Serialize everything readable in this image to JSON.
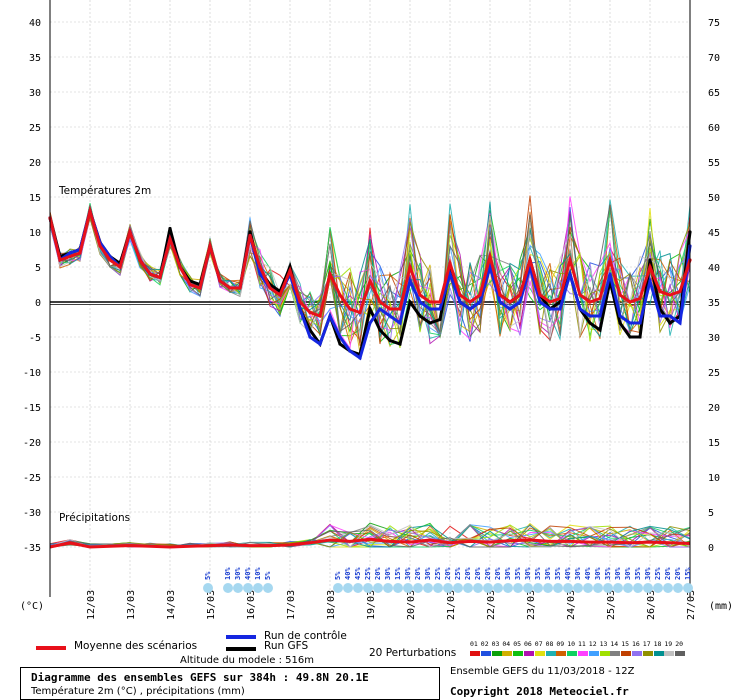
{
  "chart_data": {
    "type": "line",
    "title": "Diagramme des ensembles GEFS sur 384h : 49.8N 20.1E",
    "subtitle": "Température 2m (°C) , précipitations (mm)",
    "panels": {
      "temperature_label": "Températures 2m",
      "precip_label": "Précipitations"
    },
    "left_axis": {
      "unit": "(°C)",
      "ticks": [
        40,
        35,
        30,
        25,
        20,
        15,
        10,
        5,
        0,
        -5,
        -10,
        -15,
        -20,
        -25,
        -30,
        -35
      ],
      "range": [
        -35,
        40
      ]
    },
    "right_axis": {
      "unit": "(mm)",
      "ticks": [
        75,
        70,
        65,
        60,
        55,
        50,
        45,
        40,
        35,
        30,
        25,
        20,
        15,
        10,
        5,
        0
      ]
    },
    "dates": [
      "12/03",
      "13/03",
      "14/03",
      "15/03",
      "16/03",
      "17/03",
      "18/03",
      "19/03",
      "20/03",
      "21/03",
      "22/03",
      "23/03",
      "24/03",
      "25/03",
      "26/03",
      "27/03"
    ],
    "x_range_hours": [
      0,
      384
    ],
    "snow_labels": [
      {
        "h": 90,
        "t": "5%"
      },
      {
        "h": 102,
        "t": "10%"
      },
      {
        "h": 108,
        "t": "30%"
      },
      {
        "h": 114,
        "t": "40%"
      },
      {
        "h": 120,
        "t": "10%"
      },
      {
        "h": 126,
        "t": "5%"
      },
      {
        "h": 168,
        "t": "5%"
      },
      {
        "h": 174,
        "t": "40%"
      },
      {
        "h": 180,
        "t": "45%"
      },
      {
        "h": 186,
        "t": "25%"
      },
      {
        "h": 192,
        "t": "20%"
      },
      {
        "h": 198,
        "t": "30%"
      },
      {
        "h": 204,
        "t": "15%"
      },
      {
        "h": 210,
        "t": "30%"
      },
      {
        "h": 216,
        "t": "20%"
      },
      {
        "h": 222,
        "t": "30%"
      },
      {
        "h": 228,
        "t": "25%"
      },
      {
        "h": 234,
        "t": "20%"
      },
      {
        "h": 240,
        "t": "25%"
      },
      {
        "h": 246,
        "t": "20%"
      },
      {
        "h": 252,
        "t": "20%"
      },
      {
        "h": 258,
        "t": "20%"
      },
      {
        "h": 264,
        "t": "20%"
      },
      {
        "h": 270,
        "t": "30%"
      },
      {
        "h": 276,
        "t": "35%"
      },
      {
        "h": 282,
        "t": "30%"
      },
      {
        "h": 288,
        "t": "35%"
      },
      {
        "h": 294,
        "t": "30%"
      },
      {
        "h": 300,
        "t": "35%"
      },
      {
        "h": 306,
        "t": "40%"
      },
      {
        "h": 312,
        "t": "30%"
      },
      {
        "h": 318,
        "t": "40%"
      },
      {
        "h": 324,
        "t": "30%"
      },
      {
        "h": 330,
        "t": "35%"
      },
      {
        "h": 336,
        "t": "30%"
      },
      {
        "h": 342,
        "t": "30%"
      },
      {
        "h": 348,
        "t": "35%"
      },
      {
        "h": 354,
        "t": "30%"
      },
      {
        "h": 360,
        "t": "25%"
      },
      {
        "h": 366,
        "t": "20%"
      },
      {
        "h": 372,
        "t": "20%"
      },
      {
        "h": 378,
        "t": "15%"
      }
    ],
    "series": [
      {
        "name": "Moyenne des scénarios",
        "color": "#e8101a",
        "width": 3,
        "x": [
          0,
          6,
          12,
          18,
          24,
          30,
          36,
          42,
          48,
          54,
          60,
          66,
          72,
          78,
          84,
          90,
          96,
          102,
          108,
          114,
          120,
          126,
          132,
          138,
          144,
          150,
          156,
          162,
          168,
          174,
          180,
          186,
          192,
          198,
          204,
          210,
          216,
          222,
          228,
          234,
          240,
          246,
          252,
          258,
          264,
          270,
          276,
          282,
          288,
          294,
          300,
          306,
          312,
          318,
          324,
          330,
          336,
          342,
          348,
          354,
          360,
          366,
          372,
          378,
          384
        ],
        "y": [
          12,
          6,
          6.5,
          7,
          13,
          8,
          6,
          5,
          10,
          6,
          4,
          3.5,
          9,
          5,
          2.5,
          2,
          8,
          3,
          2,
          2,
          9.5,
          5,
          2,
          1,
          4.5,
          0,
          -1.5,
          -2,
          4,
          1,
          -1,
          -1.5,
          3,
          0,
          -1,
          -1,
          5,
          1,
          0,
          0,
          5.5,
          1,
          0,
          1,
          6.5,
          1,
          0,
          1,
          6,
          1,
          0,
          0.5,
          6,
          1,
          0,
          0.5,
          6,
          1,
          0,
          0.5,
          5,
          1.5,
          1,
          1.5,
          6
        ]
      },
      {
        "name": "Run de contrôle",
        "color": "#1526e0",
        "width": 3,
        "x": [
          0,
          6,
          12,
          18,
          24,
          30,
          36,
          42,
          48,
          54,
          60,
          66,
          72,
          78,
          84,
          90,
          96,
          102,
          108,
          114,
          120,
          126,
          132,
          138,
          144,
          150,
          156,
          162,
          168,
          174,
          180,
          186,
          192,
          198,
          204,
          210,
          216,
          222,
          228,
          234,
          240,
          246,
          252,
          258,
          264,
          270,
          276,
          282,
          288,
          294,
          300,
          306,
          312,
          318,
          324,
          330,
          336,
          342,
          348,
          354,
          360,
          366,
          372,
          378,
          384
        ],
        "y": [
          12,
          6,
          7,
          7.5,
          13,
          8.5,
          6.5,
          5,
          10,
          6,
          4,
          3.5,
          9,
          5,
          2.5,
          2,
          8,
          3,
          2,
          2,
          9.5,
          4,
          2,
          1,
          4,
          -1,
          -5,
          -6,
          -2,
          -5,
          -7,
          -8,
          -3,
          -1,
          -2,
          -3,
          3,
          0,
          -1,
          -1,
          4,
          0,
          -1,
          0,
          5,
          0,
          -1,
          0,
          5,
          0,
          -1,
          -1,
          4,
          -1,
          -2,
          -2,
          4,
          -2,
          -3,
          -3,
          3,
          -2,
          -2,
          -3,
          8
        ]
      },
      {
        "name": "Run GFS",
        "color": "#000000",
        "width": 3,
        "x": [
          0,
          6,
          12,
          18,
          24,
          30,
          36,
          42,
          48,
          54,
          60,
          66,
          72,
          78,
          84,
          90,
          96,
          102,
          108,
          114,
          120,
          126,
          132,
          138,
          144,
          150,
          156,
          162,
          168,
          174,
          180,
          186,
          192,
          198,
          204,
          210,
          216,
          222,
          228,
          234,
          240,
          246,
          252,
          258,
          264,
          270,
          276,
          282,
          288,
          294,
          300,
          306,
          312,
          318,
          324,
          330,
          336,
          342,
          348,
          354,
          360,
          366,
          372,
          378,
          384
        ],
        "y": [
          12,
          6.5,
          7,
          7.5,
          13,
          8.5,
          6.5,
          5.5,
          10,
          6,
          4,
          3.5,
          10.5,
          5,
          3,
          2.5,
          8,
          3,
          2,
          2,
          10,
          4.5,
          2.5,
          1.5,
          5,
          -1,
          -4,
          -6,
          -2,
          -6,
          -7,
          -7.5,
          -1,
          -4,
          -5.5,
          -6,
          0,
          -2,
          -3,
          -2.5,
          5,
          0,
          -1,
          0,
          6,
          1,
          0,
          1,
          6,
          1,
          -1,
          0,
          4,
          -1,
          -3,
          -4,
          3,
          -3,
          -5,
          -5,
          6,
          -1,
          -3,
          -2,
          10
        ]
      }
    ],
    "precip_series": [
      {
        "name": "Moyenne des scénarios",
        "color": "#e8101a",
        "width": 3,
        "x": [
          0,
          12,
          24,
          36,
          48,
          60,
          72,
          84,
          96,
          108,
          120,
          132,
          144,
          156,
          168,
          180,
          192,
          204,
          216,
          228,
          240,
          252,
          264,
          276,
          288,
          300,
          312,
          324,
          336,
          348,
          360,
          372,
          384
        ],
        "y": [
          0,
          0.6,
          0,
          0.1,
          0.2,
          0.1,
          0,
          0.1,
          0.2,
          0.3,
          0.2,
          0.2,
          0.3,
          0.6,
          1.0,
          0.8,
          1.1,
          0.8,
          0.7,
          1.0,
          0.6,
          0.8,
          0.7,
          0.9,
          1.0,
          0.8,
          0.8,
          0.7,
          0.7,
          0.6,
          0.7,
          0.6,
          0.5
        ]
      }
    ],
    "legend": {
      "mean": "Moyenne des scénarios",
      "control": "Run de contrôle",
      "gfs": "Run GFS",
      "perturbations": "20 Perturbations",
      "pert_ids": [
        "01",
        "02",
        "03",
        "04",
        "05",
        "06",
        "07",
        "08",
        "09",
        "10",
        "11",
        "12",
        "13",
        "14",
        "15",
        "16",
        "17",
        "18",
        "19",
        "20"
      ],
      "pert_colors": [
        "#e01010",
        "#2050e0",
        "#0aa00a",
        "#d0b000",
        "#10c010",
        "#b010b0",
        "#e0e010",
        "#20b0b0",
        "#d06000",
        "#10d060",
        "#ff40ff",
        "#40a0ff",
        "#a0e000",
        "#808080",
        "#c04000",
        "#9070f0",
        "#909000",
        "#009090",
        "#c0c0c0",
        "#606060"
      ]
    }
  },
  "footer": {
    "altitude": "Altitude du modele : 516m",
    "ensemble": "Ensemble GEFS du 11/03/2018 - 12Z",
    "copyright": "Copyright 2018 Meteociel.fr"
  }
}
